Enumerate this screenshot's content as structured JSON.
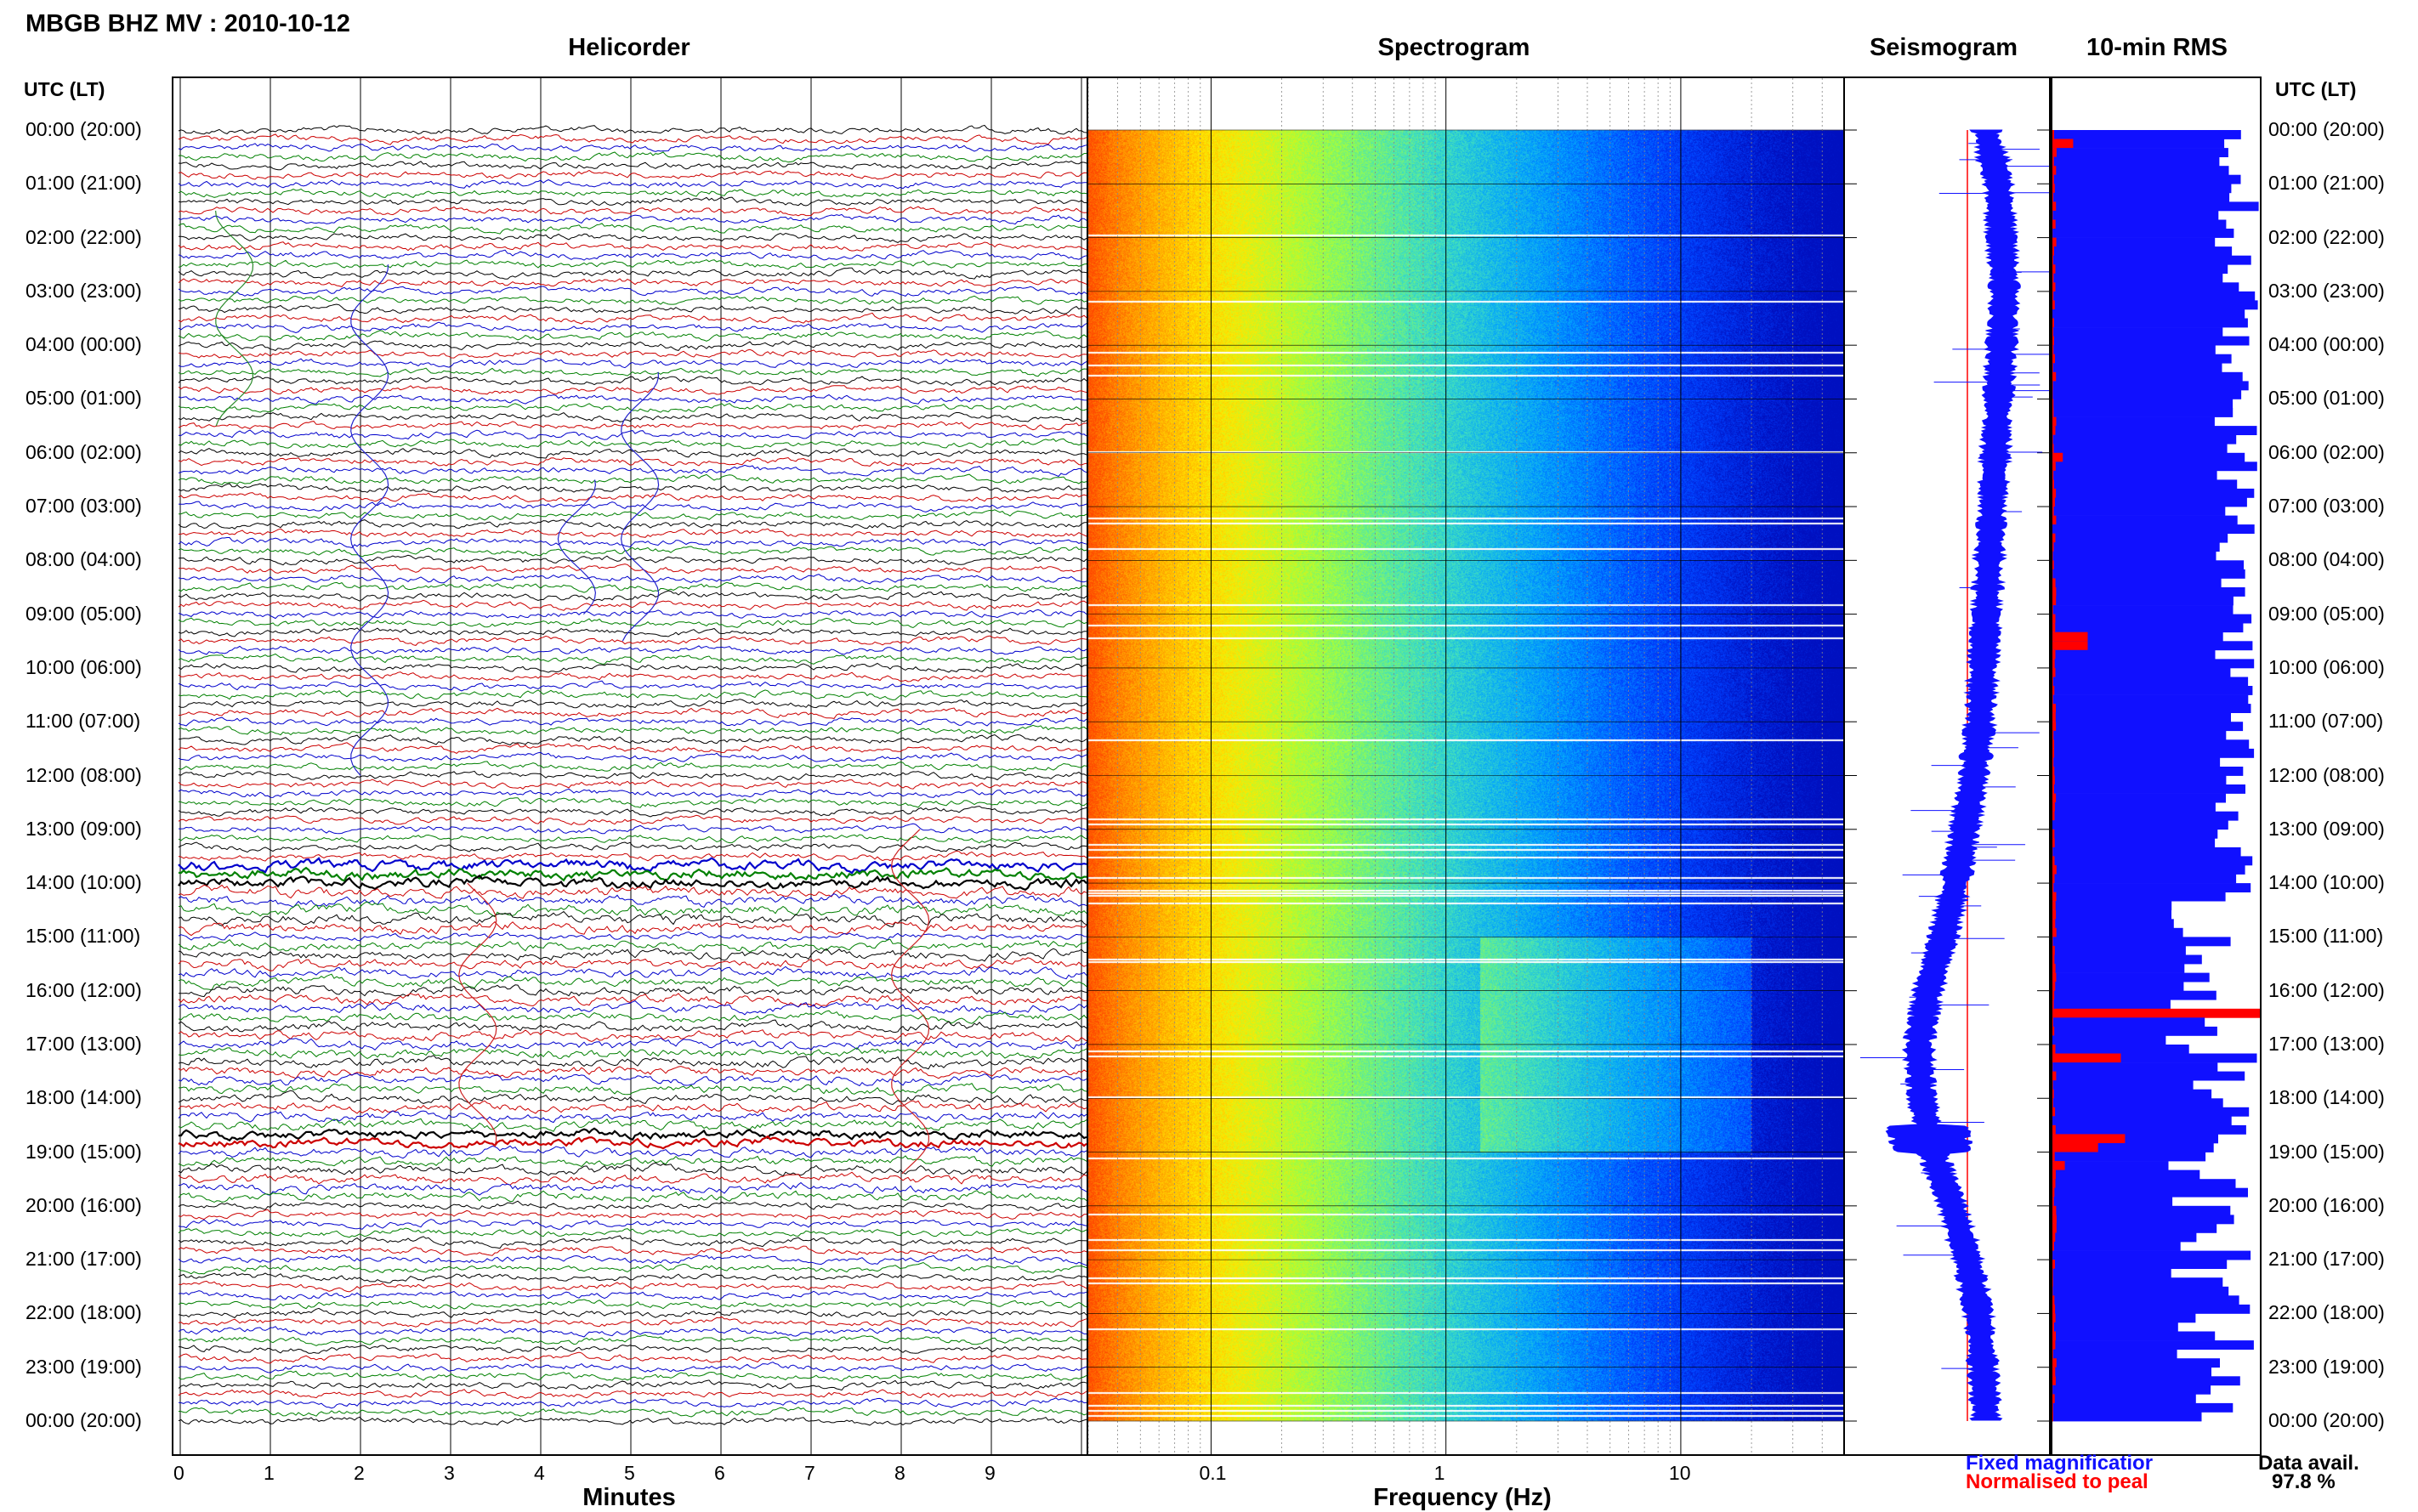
{
  "header": {
    "title": "MBGB BHZ MV : 2010-10-12"
  },
  "panels": {
    "helicorder": "Helicorder",
    "spectrogram": "Spectrogram",
    "seismogram": "Seismogram",
    "rms": "10-min RMS"
  },
  "axes": {
    "left_label": "UTC (LT)",
    "right_label": "UTC (LT)",
    "minutes_label": "Minutes",
    "frequency_label": "Frequency (Hz)"
  },
  "legend": {
    "fixed": "Fixed magnificatior",
    "normalised": "Normalised to peal",
    "fixed_color": "#1010ff",
    "normalised_color": "#ff0000"
  },
  "data_availability": {
    "label": "Data avail.",
    "value": "97.8 %"
  },
  "chart_data": [
    {
      "type": "line",
      "name": "Helicorder",
      "xlabel": "Minutes",
      "ylabel": "UTC (LT)",
      "xlim": [
        0,
        10
      ],
      "x_ticks": [
        "0",
        "1",
        "2",
        "3",
        "4",
        "5",
        "6",
        "7",
        "8",
        "9"
      ],
      "y_ticks": [
        "00:00 (20:00)",
        "01:00 (21:00)",
        "02:00 (22:00)",
        "03:00 (23:00)",
        "04:00 (00:00)",
        "05:00 (01:00)",
        "06:00 (02:00)",
        "07:00 (03:00)",
        "08:00 (04:00)",
        "09:00 (05:00)",
        "10:00 (06:00)",
        "11:00 (07:00)",
        "12:00 (08:00)",
        "13:00 (09:00)",
        "14:00 (10:00)",
        "15:00 (11:00)",
        "16:00 (12:00)",
        "17:00 (13:00)",
        "18:00 (14:00)",
        "19:00 (15:00)",
        "20:00 (16:00)",
        "21:00 (17:00)",
        "22:00 (18:00)",
        "23:00 (19:00)",
        "00:00 (20:00)"
      ],
      "trace_colors": [
        "#000000",
        "#cc0000",
        "#0000cc",
        "#008000"
      ]
    },
    {
      "type": "heatmap",
      "name": "Spectrogram",
      "xlabel": "Frequency (Hz)",
      "x_scale": "log",
      "xlim": [
        0.03,
        50
      ],
      "x_ticks": [
        "0.1",
        "1",
        "10"
      ],
      "colormap": [
        "#ff4a00",
        "#ffa000",
        "#ffe800",
        "#a0ff40",
        "#40e0c0",
        "#00a0ff",
        "#0040ff",
        "#0010c0"
      ]
    },
    {
      "type": "line",
      "name": "Seismogram",
      "series": [
        {
          "name": "Fixed magnificatior",
          "color": "#1010ff"
        },
        {
          "name": "Normalised to peal",
          "color": "#ff0000"
        }
      ],
      "envelope_center": [
        [
          0,
          0.1
        ],
        [
          1,
          0.18
        ],
        [
          2,
          0.2
        ],
        [
          3,
          0.22
        ],
        [
          4,
          0.2
        ],
        [
          5,
          0.18
        ],
        [
          6,
          0.16
        ],
        [
          7,
          0.14
        ],
        [
          8,
          0.12
        ],
        [
          9,
          0.1
        ],
        [
          10,
          0.08
        ],
        [
          11,
          0.06
        ],
        [
          12,
          0.02
        ],
        [
          13,
          -0.04
        ],
        [
          14,
          -0.1
        ],
        [
          15,
          -0.18
        ],
        [
          16,
          -0.28
        ],
        [
          17,
          -0.34
        ],
        [
          18,
          -0.32
        ],
        [
          19,
          -0.25
        ],
        [
          20,
          -0.12
        ],
        [
          21,
          -0.02
        ],
        [
          22,
          0.05
        ],
        [
          23,
          0.08
        ],
        [
          24,
          0.1
        ]
      ]
    },
    {
      "type": "bar",
      "name": "10-min RMS",
      "categories_count": 144,
      "series": [
        {
          "name": "Fixed magnificatior",
          "color": "#1010ff"
        },
        {
          "name": "Normalised to peal",
          "color": "#ff0000"
        }
      ],
      "x_range": [
        0,
        1
      ]
    }
  ]
}
